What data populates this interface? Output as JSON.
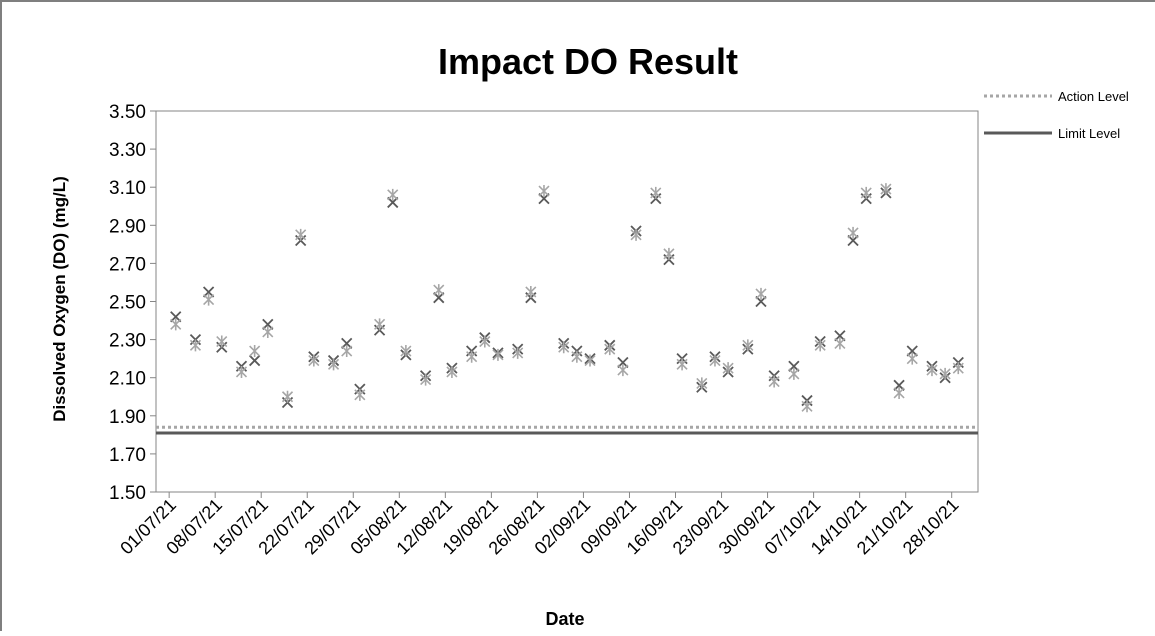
{
  "chart_data": {
    "type": "scatter",
    "title": "Impact DO Result",
    "xlabel": "Date",
    "ylabel": "Dissolved Oxygen (DO) (mg/L)",
    "ylim": [
      1.5,
      3.5
    ],
    "yticks": [
      "1.50",
      "1.70",
      "1.90",
      "2.10",
      "2.30",
      "2.50",
      "2.70",
      "2.90",
      "3.10",
      "3.30",
      "3.50"
    ],
    "xticks": [
      "01/07/21",
      "08/07/21",
      "15/07/21",
      "22/07/21",
      "29/07/21",
      "05/08/21",
      "12/08/21",
      "19/08/21",
      "26/08/21",
      "02/09/21",
      "09/09/21",
      "16/09/21",
      "23/09/21",
      "30/09/21",
      "07/10/21",
      "14/10/21",
      "21/10/21",
      "28/10/21"
    ],
    "x_range": [
      "29/06/21",
      "01/11/21"
    ],
    "grid": false,
    "legend_position": "top-right",
    "colors": {
      "series_dark": "#595959",
      "series_light": "#a6a6a6",
      "action": "#a6a6a6",
      "limit": "#595959"
    },
    "reference_lines": [
      {
        "name": "Action Level",
        "value": 1.84,
        "style": "dotted",
        "color": "#a6a6a6"
      },
      {
        "name": "Limit Level",
        "value": 1.81,
        "style": "solid",
        "color": "#595959"
      }
    ],
    "series": [
      {
        "x": [
          "02/07/21",
          "05/07/21",
          "07/07/21",
          "09/07/21",
          "12/07/21",
          "14/07/21",
          "16/07/21",
          "19/07/21",
          "21/07/21",
          "23/07/21",
          "26/07/21",
          "28/07/21",
          "30/07/21",
          "02/08/21",
          "04/08/21",
          "06/08/21",
          "09/08/21",
          "11/08/21",
          "13/08/21",
          "16/08/21",
          "18/08/21",
          "20/08/21",
          "23/08/21",
          "25/08/21",
          "27/08/21",
          "30/08/21",
          "01/09/21",
          "03/09/21",
          "06/09/21",
          "08/09/21",
          "10/09/21",
          "13/09/21",
          "15/09/21",
          "17/09/21",
          "20/09/21",
          "22/09/21",
          "24/09/21",
          "27/09/21",
          "29/09/21",
          "01/10/21",
          "04/10/21",
          "06/10/21",
          "08/10/21",
          "11/10/21",
          "13/10/21",
          "15/10/21",
          "18/10/21",
          "20/10/21",
          "22/10/21",
          "25/10/21",
          "27/10/21",
          "29/10/21"
        ],
        "values": [
          2.42,
          2.3,
          2.55,
          2.26,
          2.16,
          2.19,
          2.38,
          1.97,
          2.82,
          2.21,
          2.19,
          2.28,
          2.04,
          2.35,
          3.02,
          2.22,
          2.11,
          2.52,
          2.15,
          2.24,
          2.31,
          2.23,
          2.25,
          2.52,
          3.04,
          2.28,
          2.24,
          2.2,
          2.27,
          2.18,
          2.87,
          3.04,
          2.72,
          2.2,
          2.05,
          2.21,
          2.13,
          2.25,
          2.5,
          2.11,
          2.16,
          1.98,
          2.29,
          2.32,
          2.82,
          3.04,
          3.07,
          2.06,
          2.24,
          2.16,
          2.1,
          2.18
        ]
      },
      {
        "x": [
          "02/07/21",
          "05/07/21",
          "07/07/21",
          "09/07/21",
          "12/07/21",
          "14/07/21",
          "16/07/21",
          "19/07/21",
          "21/07/21",
          "23/07/21",
          "26/07/21",
          "28/07/21",
          "30/07/21",
          "02/08/21",
          "04/08/21",
          "06/08/21",
          "09/08/21",
          "11/08/21",
          "13/08/21",
          "16/08/21",
          "18/08/21",
          "20/08/21",
          "23/08/21",
          "25/08/21",
          "27/08/21",
          "30/08/21",
          "01/09/21",
          "03/09/21",
          "06/09/21",
          "08/09/21",
          "10/09/21",
          "13/09/21",
          "15/09/21",
          "17/09/21",
          "20/09/21",
          "22/09/21",
          "24/09/21",
          "27/09/21",
          "29/09/21",
          "01/10/21",
          "04/10/21",
          "06/10/21",
          "08/10/21",
          "11/10/21",
          "13/10/21",
          "15/10/21",
          "18/10/21",
          "20/10/21",
          "22/10/21",
          "25/10/21",
          "27/10/21",
          "29/10/21"
        ],
        "values": [
          2.38,
          2.27,
          2.51,
          2.29,
          2.13,
          2.24,
          2.34,
          2.0,
          2.85,
          2.19,
          2.17,
          2.24,
          2.01,
          2.38,
          3.06,
          2.24,
          2.09,
          2.56,
          2.13,
          2.21,
          2.29,
          2.22,
          2.23,
          2.55,
          3.08,
          2.26,
          2.21,
          2.19,
          2.25,
          2.14,
          2.85,
          3.07,
          2.75,
          2.17,
          2.07,
          2.19,
          2.15,
          2.27,
          2.54,
          2.08,
          2.12,
          1.95,
          2.27,
          2.28,
          2.86,
          3.07,
          3.09,
          2.02,
          2.2,
          2.14,
          2.12,
          2.15
        ]
      }
    ]
  }
}
